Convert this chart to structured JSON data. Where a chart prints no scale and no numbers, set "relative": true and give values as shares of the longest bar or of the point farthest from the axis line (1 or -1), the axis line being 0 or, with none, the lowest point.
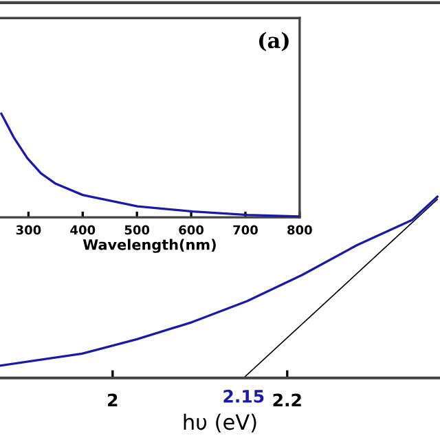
{
  "chart_data": [
    {
      "type": "line",
      "relative": true,
      "xlabel": "hυ (eV)",
      "xlim": [
        1.871,
        2.375
      ],
      "xticks": [
        2,
        2.2
      ],
      "tick_labels": "x",
      "grid": false,
      "legend": false,
      "series": [
        {
          "color": "#1a1aa8",
          "x": [
            1.871,
            1.965,
            2.028,
            2.091,
            2.154,
            2.217,
            2.28,
            2.343,
            2.372
          ],
          "values": [
            0.068,
            0.134,
            0.214,
            0.308,
            0.424,
            0.568,
            0.733,
            0.871,
            1.0
          ]
        },
        {
          "color": "#000000",
          "x": [
            2.15,
            2.372
          ],
          "values": [
            0,
            0.985
          ]
        }
      ],
      "annotations": [
        {
          "text": "2.15",
          "x": 2.15,
          "y": 0
        }
      ]
    },
    {
      "type": "line",
      "relative": true,
      "xlabel": "Wavelength(nm)",
      "xlim": [
        247.5,
        800
      ],
      "xticks": [
        300,
        400,
        500,
        600,
        700,
        800
      ],
      "tick_labels": "x",
      "grid": false,
      "legend": false,
      "series": [
        {
          "color": "#1a1aa8",
          "x": [
            250,
            273,
            298,
            323,
            349,
            400,
            501,
            603,
            704,
            800
          ],
          "values": [
            1,
            0.77,
            0.571,
            0.425,
            0.328,
            0.216,
            0.106,
            0.057,
            0.023,
            0.009
          ]
        }
      ],
      "annotations": [
        "(a)"
      ]
    }
  ]
}
